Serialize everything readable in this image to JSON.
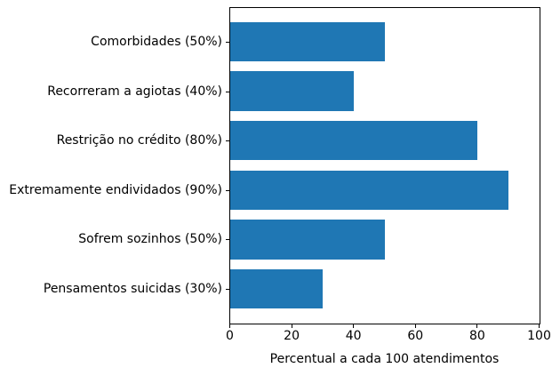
{
  "chart_data": {
    "type": "bar",
    "orientation": "horizontal",
    "title": "",
    "categories": [
      "Comorbidades (50%)",
      "Recorreram a agiotas (40%)",
      "Restrição no crédito (80%)",
      "Extremamente endividados (90%)",
      "Sofrem sozinhos (50%)",
      "Pensamentos suicidas (30%)"
    ],
    "values": [
      50,
      40,
      80,
      90,
      50,
      30
    ],
    "xlabel": "Percentual a cada 100 atendimentos",
    "ylabel": "",
    "x_ticks": [
      0,
      20,
      40,
      60,
      80,
      100
    ],
    "xlim": [
      0,
      100
    ],
    "grid": false,
    "legend": "none",
    "bar_color": "#1f77b4",
    "axis_color": "#000000"
  }
}
